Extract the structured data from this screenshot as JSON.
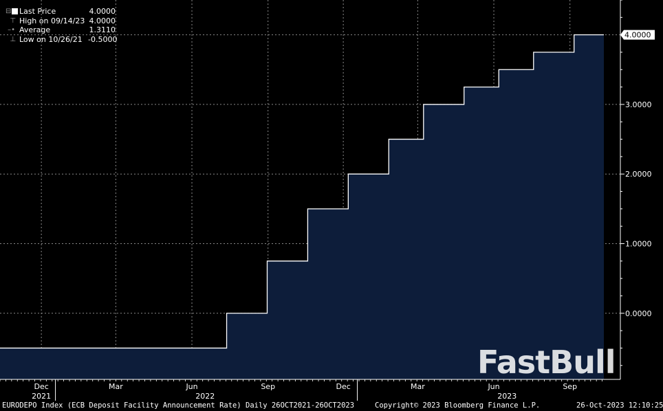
{
  "legend": {
    "items": [
      {
        "label": "Last Price",
        "value": "4.0000"
      },
      {
        "label": "High on 09/14/23",
        "value": "4.0000"
      },
      {
        "label": "Average",
        "value": "1.3110"
      },
      {
        "label": "Low on 10/26/21",
        "value": "-0.5000"
      }
    ]
  },
  "footer": {
    "index": "EURODEPO Index (ECB Deposit Facility Announcement Rate)  Daily 26OCT2021-26OCT2023",
    "copyright": "Copyright© 2023 Bloomberg Finance L.P.",
    "timestamp": "26-Oct-2023 12:10:25"
  },
  "watermark": "FastBull",
  "colors": {
    "fill": "#0d1d3a",
    "line": "#ffffff",
    "background": "#000000",
    "grid": "#8a8a8a"
  },
  "chart_data": {
    "type": "area",
    "step": true,
    "x_start": "2021-10-26",
    "x_end": "2023-10-26",
    "ylim": [
      -0.95,
      4.5
    ],
    "yticks": [
      "4.0000",
      "3.0000",
      "2.0000",
      "1.0000",
      "0.0000"
    ],
    "ytick_values": [
      4,
      3,
      2,
      1,
      0
    ],
    "last_value_label": "4.0000",
    "last_value": 4.0,
    "grid": true,
    "xticks_months": [
      "Dec",
      "Mar",
      "Jun",
      "Sep",
      "Dec",
      "Mar",
      "Jun",
      "Sep"
    ],
    "xtick_dates": [
      "2021-12-15",
      "2022-03-15",
      "2022-06-15",
      "2022-09-15",
      "2022-12-15",
      "2023-03-15",
      "2023-06-15",
      "2023-09-15"
    ],
    "xticks_years": [
      "2021",
      "2022",
      "2023"
    ],
    "year_dates": [
      "2021-12-15",
      "2022-07-01",
      "2023-07-01"
    ],
    "year_separators": [
      "2022-01-01",
      "2023-01-01"
    ],
    "points": [
      {
        "date": "2021-10-26",
        "value": -0.5
      },
      {
        "date": "2022-07-27",
        "value": 0.0
      },
      {
        "date": "2022-09-14",
        "value": 0.75
      },
      {
        "date": "2022-11-02",
        "value": 1.5
      },
      {
        "date": "2022-12-21",
        "value": 2.0
      },
      {
        "date": "2023-02-08",
        "value": 2.5
      },
      {
        "date": "2023-03-22",
        "value": 3.0
      },
      {
        "date": "2023-05-10",
        "value": 3.25
      },
      {
        "date": "2023-06-21",
        "value": 3.5
      },
      {
        "date": "2023-08-02",
        "value": 3.75
      },
      {
        "date": "2023-09-20",
        "value": 4.0
      },
      {
        "date": "2023-10-26",
        "value": 4.0
      }
    ]
  }
}
